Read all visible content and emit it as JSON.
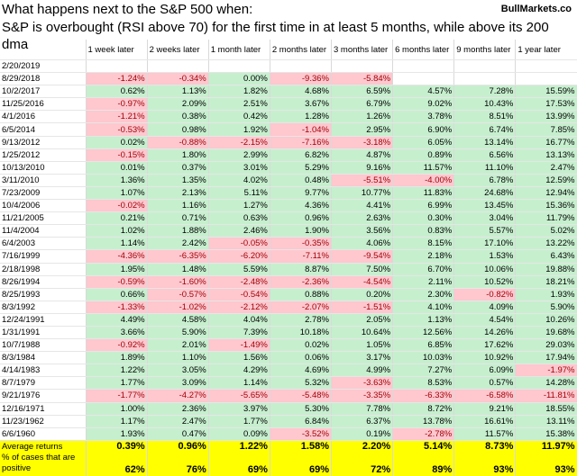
{
  "header": {
    "title_line1": "What happens next to the S&P 500 when:",
    "title_line2": "S&P is overbought (RSI above 70) for the first time in at least 5 months, while above its 200 dma",
    "brand": "BullMarkets.co"
  },
  "columns": [
    "",
    "1 week later",
    "2 weeks later",
    "1 month later",
    "2 months later",
    "3 months later",
    "6 months later",
    "9 months later",
    "1 year later"
  ],
  "rows": [
    {
      "date": "2/20/2019",
      "values": [
        "",
        "",
        "",
        "",
        "",
        "",
        "",
        ""
      ]
    },
    {
      "date": "8/29/2018",
      "values": [
        "-1.24%",
        "-0.34%",
        "0.00%",
        "-9.36%",
        "-5.84%",
        "",
        "",
        ""
      ]
    },
    {
      "date": "10/2/2017",
      "values": [
        "0.62%",
        "1.13%",
        "1.82%",
        "4.68%",
        "6.59%",
        "4.57%",
        "7.28%",
        "15.59%"
      ]
    },
    {
      "date": "11/25/2016",
      "values": [
        "-0.97%",
        "2.09%",
        "2.51%",
        "3.67%",
        "6.79%",
        "9.02%",
        "10.43%",
        "17.53%"
      ]
    },
    {
      "date": "4/1/2016",
      "values": [
        "-1.21%",
        "0.38%",
        "0.42%",
        "1.28%",
        "1.26%",
        "3.78%",
        "8.51%",
        "13.99%"
      ]
    },
    {
      "date": "6/5/2014",
      "values": [
        "-0.53%",
        "0.98%",
        "1.92%",
        "-1.04%",
        "2.95%",
        "6.90%",
        "6.74%",
        "7.85%"
      ]
    },
    {
      "date": "9/13/2012",
      "values": [
        "0.02%",
        "-0.88%",
        "-2.15%",
        "-7.16%",
        "-3.18%",
        "6.05%",
        "13.14%",
        "16.77%"
      ]
    },
    {
      "date": "1/25/2012",
      "values": [
        "-0.15%",
        "1.80%",
        "2.99%",
        "6.82%",
        "4.87%",
        "0.89%",
        "6.56%",
        "13.13%"
      ]
    },
    {
      "date": "10/13/2010",
      "values": [
        "0.01%",
        "0.37%",
        "3.01%",
        "5.29%",
        "9.16%",
        "11.57%",
        "11.10%",
        "2.47%"
      ]
    },
    {
      "date": "3/11/2010",
      "values": [
        "1.36%",
        "1.35%",
        "4.02%",
        "0.48%",
        "-5.51%",
        "-4.00%",
        "6.78%",
        "12.59%"
      ]
    },
    {
      "date": "7/23/2009",
      "values": [
        "1.07%",
        "2.13%",
        "5.11%",
        "9.77%",
        "10.77%",
        "11.83%",
        "24.68%",
        "12.94%"
      ]
    },
    {
      "date": "10/4/2006",
      "values": [
        "-0.02%",
        "1.16%",
        "1.27%",
        "4.36%",
        "4.41%",
        "6.99%",
        "13.45%",
        "15.36%"
      ]
    },
    {
      "date": "11/21/2005",
      "values": [
        "0.21%",
        "0.71%",
        "0.63%",
        "0.96%",
        "2.63%",
        "0.30%",
        "3.04%",
        "11.79%"
      ]
    },
    {
      "date": "11/4/2004",
      "values": [
        "1.02%",
        "1.88%",
        "2.46%",
        "1.90%",
        "3.56%",
        "0.83%",
        "5.57%",
        "5.02%"
      ]
    },
    {
      "date": "6/4/2003",
      "values": [
        "1.14%",
        "2.42%",
        "-0.05%",
        "-0.35%",
        "4.06%",
        "8.15%",
        "17.10%",
        "13.22%"
      ]
    },
    {
      "date": "7/16/1999",
      "values": [
        "-4.36%",
        "-6.35%",
        "-6.20%",
        "-7.11%",
        "-9.54%",
        "2.18%",
        "1.53%",
        "6.43%"
      ]
    },
    {
      "date": "2/18/1998",
      "values": [
        "1.95%",
        "1.48%",
        "5.59%",
        "8.87%",
        "7.50%",
        "6.70%",
        "10.06%",
        "19.88%"
      ]
    },
    {
      "date": "8/26/1994",
      "values": [
        "-0.59%",
        "-1.60%",
        "-2.48%",
        "-2.36%",
        "-4.54%",
        "2.11%",
        "10.52%",
        "18.21%"
      ]
    },
    {
      "date": "8/25/1993",
      "values": [
        "0.66%",
        "-0.57%",
        "-0.54%",
        "0.88%",
        "0.20%",
        "2.30%",
        "-0.82%",
        "1.93%"
      ]
    },
    {
      "date": "8/3/1992",
      "values": [
        "-1.33%",
        "-1.02%",
        "-2.12%",
        "-2.07%",
        "-1.51%",
        "4.10%",
        "4.09%",
        "5.90%"
      ]
    },
    {
      "date": "12/24/1991",
      "values": [
        "4.49%",
        "4.58%",
        "4.04%",
        "2.78%",
        "2.05%",
        "1.13%",
        "4.54%",
        "10.26%"
      ]
    },
    {
      "date": "1/31/1991",
      "values": [
        "3.66%",
        "5.90%",
        "7.39%",
        "10.18%",
        "10.64%",
        "12.56%",
        "14.26%",
        "19.68%"
      ]
    },
    {
      "date": "10/7/1988",
      "values": [
        "-0.92%",
        "2.01%",
        "-1.49%",
        "0.02%",
        "1.05%",
        "6.85%",
        "17.62%",
        "29.03%"
      ]
    },
    {
      "date": "8/3/1984",
      "values": [
        "1.89%",
        "1.10%",
        "1.56%",
        "0.06%",
        "3.17%",
        "10.03%",
        "10.92%",
        "17.94%"
      ]
    },
    {
      "date": "4/14/1983",
      "values": [
        "1.22%",
        "3.05%",
        "4.29%",
        "4.69%",
        "4.99%",
        "7.27%",
        "6.09%",
        "-1.97%"
      ]
    },
    {
      "date": "8/7/1979",
      "values": [
        "1.77%",
        "3.09%",
        "1.14%",
        "5.32%",
        "-3.63%",
        "8.53%",
        "0.57%",
        "14.28%"
      ]
    },
    {
      "date": "9/21/1976",
      "values": [
        "-1.77%",
        "-4.27%",
        "-5.65%",
        "-5.48%",
        "-3.35%",
        "-6.33%",
        "-6.58%",
        "-11.81%"
      ]
    },
    {
      "date": "12/16/1971",
      "values": [
        "1.00%",
        "2.36%",
        "3.97%",
        "5.30%",
        "7.78%",
        "8.72%",
        "9.21%",
        "18.55%"
      ]
    },
    {
      "date": "11/23/1962",
      "values": [
        "1.17%",
        "2.47%",
        "1.77%",
        "6.84%",
        "6.37%",
        "13.78%",
        "16.61%",
        "13.11%"
      ]
    },
    {
      "date": "6/6/1960",
      "values": [
        "1.93%",
        "0.47%",
        "0.09%",
        "-3.52%",
        "0.19%",
        "-2.78%",
        "11.57%",
        "15.38%"
      ]
    }
  ],
  "summary": {
    "avg_label": "Average returns",
    "avg_values": [
      "0.39%",
      "0.96%",
      "1.22%",
      "1.58%",
      "2.20%",
      "5.14%",
      "8.73%",
      "11.97%"
    ],
    "pct_label": "% of cases that are positive",
    "pct_values": [
      "62%",
      "76%",
      "69%",
      "69%",
      "72%",
      "89%",
      "93%",
      "93%"
    ]
  },
  "colors": {
    "positive_fill": "#c6efce",
    "negative_fill": "#ffc7ce",
    "negative_text": "#9c0006",
    "summary_fill": "#ffff00"
  }
}
